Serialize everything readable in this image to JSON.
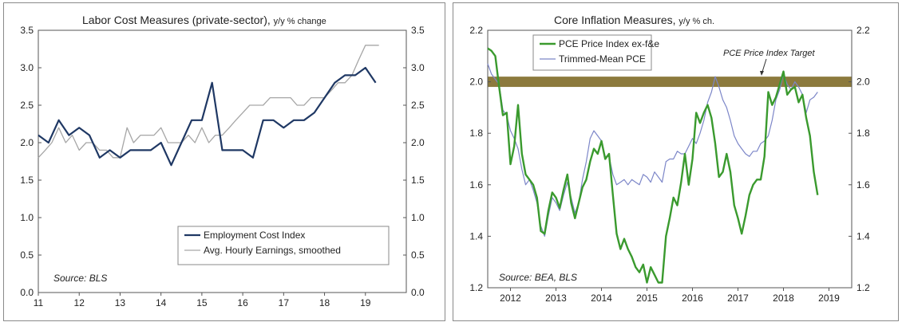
{
  "chart_data": [
    {
      "type": "line",
      "title": "Labor Cost Measures (private-sector),",
      "subtitle": "y/y % change",
      "xlabel": "",
      "ylabel": "",
      "x_ticks": [
        "11",
        "12",
        "13",
        "14",
        "15",
        "16",
        "17",
        "18",
        "19"
      ],
      "xlim": [
        2011.0,
        2020.0
      ],
      "ylim": [
        0.0,
        3.5
      ],
      "y_ticks": [
        "0.0",
        "0.5",
        "1.0",
        "1.5",
        "2.0",
        "2.5",
        "3.0",
        "3.5"
      ],
      "legend_position": "bottom-right",
      "source": "Source: BLS",
      "series": [
        {
          "name": "Employment Cost Index",
          "color": "#1f3864",
          "x": [
            2011.0,
            2011.25,
            2011.5,
            2011.75,
            2012.0,
            2012.25,
            2012.5,
            2012.75,
            2013.0,
            2013.25,
            2013.5,
            2013.75,
            2014.0,
            2014.25,
            2014.5,
            2014.75,
            2015.0,
            2015.25,
            2015.5,
            2015.75,
            2016.0,
            2016.25,
            2016.5,
            2016.75,
            2017.0,
            2017.25,
            2017.5,
            2017.75,
            2018.0,
            2018.25,
            2018.5,
            2018.75,
            2019.0,
            2019.25
          ],
          "values": [
            2.1,
            2.0,
            2.3,
            2.1,
            2.2,
            2.1,
            1.8,
            1.9,
            1.8,
            1.9,
            1.9,
            1.9,
            2.0,
            1.7,
            2.0,
            2.3,
            2.3,
            2.8,
            1.9,
            1.9,
            1.9,
            1.8,
            2.3,
            2.3,
            2.2,
            2.3,
            2.3,
            2.4,
            2.6,
            2.8,
            2.9,
            2.9,
            3.0,
            2.8
          ]
        },
        {
          "name": "Avg. Hourly Earnings, smoothed",
          "color": "#a6a6a6",
          "x": [
            2011.0,
            2011.17,
            2011.33,
            2011.5,
            2011.67,
            2011.83,
            2012.0,
            2012.17,
            2012.33,
            2012.5,
            2012.67,
            2012.83,
            2013.0,
            2013.17,
            2013.33,
            2013.5,
            2013.67,
            2013.83,
            2014.0,
            2014.17,
            2014.33,
            2014.5,
            2014.67,
            2014.83,
            2015.0,
            2015.17,
            2015.33,
            2015.5,
            2015.67,
            2015.83,
            2016.0,
            2016.17,
            2016.33,
            2016.5,
            2016.67,
            2016.83,
            2017.0,
            2017.17,
            2017.33,
            2017.5,
            2017.67,
            2017.83,
            2018.0,
            2018.17,
            2018.33,
            2018.5,
            2018.67,
            2018.83,
            2019.0,
            2019.17,
            2019.33
          ],
          "values": [
            1.8,
            1.9,
            2.0,
            2.2,
            2.0,
            2.1,
            1.9,
            2.0,
            2.0,
            1.9,
            1.9,
            1.8,
            1.8,
            2.2,
            2.0,
            2.1,
            2.1,
            2.1,
            2.2,
            2.0,
            2.0,
            2.0,
            2.1,
            2.0,
            2.2,
            2.0,
            2.1,
            2.1,
            2.2,
            2.3,
            2.4,
            2.5,
            2.5,
            2.5,
            2.6,
            2.6,
            2.6,
            2.6,
            2.5,
            2.5,
            2.6,
            2.6,
            2.6,
            2.7,
            2.8,
            2.8,
            2.9,
            3.1,
            3.3,
            3.3,
            3.3
          ]
        }
      ]
    },
    {
      "type": "line",
      "title": "Core Inflation Measures,",
      "subtitle": "y/y % ch.",
      "xlabel": "",
      "ylabel": "",
      "x_ticks": [
        "2012",
        "2013",
        "2014",
        "2015",
        "2016",
        "2017",
        "2018",
        "2019"
      ],
      "xlim": [
        2011.5,
        2019.5
      ],
      "ylim": [
        1.2,
        2.2
      ],
      "y_ticks": [
        "1.2",
        "1.4",
        "1.6",
        "1.8",
        "2.0",
        "2.2"
      ],
      "target_band": [
        1.98,
        2.02
      ],
      "band_color": "#8c7a3d",
      "annotation": "PCE Price Index Target",
      "legend_position": "top-left",
      "source": "Source: BEA, BLS",
      "series": [
        {
          "name": "PCE Price Index ex-f&e",
          "color": "#3a9a2e",
          "x": [
            2011.5,
            2011.583,
            2011.667,
            2011.75,
            2011.833,
            2011.917,
            2012.0,
            2012.083,
            2012.167,
            2012.25,
            2012.333,
            2012.417,
            2012.5,
            2012.583,
            2012.667,
            2012.75,
            2012.833,
            2012.917,
            2013.0,
            2013.083,
            2013.167,
            2013.25,
            2013.333,
            2013.417,
            2013.5,
            2013.583,
            2013.667,
            2013.75,
            2013.833,
            2013.917,
            2014.0,
            2014.083,
            2014.167,
            2014.25,
            2014.333,
            2014.417,
            2014.5,
            2014.583,
            2014.667,
            2014.75,
            2014.833,
            2014.917,
            2015.0,
            2015.083,
            2015.167,
            2015.25,
            2015.333,
            2015.417,
            2015.5,
            2015.583,
            2015.667,
            2015.75,
            2015.833,
            2015.917,
            2016.0,
            2016.083,
            2016.167,
            2016.25,
            2016.333,
            2016.417,
            2016.5,
            2016.583,
            2016.667,
            2016.75,
            2016.833,
            2016.917,
            2017.0,
            2017.083,
            2017.167,
            2017.25,
            2017.333,
            2017.417,
            2017.5,
            2017.583,
            2017.667,
            2017.75,
            2017.833,
            2017.917,
            2018.0,
            2018.083,
            2018.167,
            2018.25,
            2018.333,
            2018.417,
            2018.5,
            2018.583,
            2018.667,
            2018.75
          ],
          "values": [
            2.13,
            2.12,
            2.1,
            1.98,
            1.87,
            1.88,
            1.68,
            1.75,
            1.91,
            1.72,
            1.64,
            1.62,
            1.6,
            1.55,
            1.42,
            1.41,
            1.5,
            1.57,
            1.55,
            1.51,
            1.58,
            1.64,
            1.53,
            1.47,
            1.53,
            1.59,
            1.62,
            1.69,
            1.74,
            1.72,
            1.77,
            1.7,
            1.72,
            1.56,
            1.41,
            1.35,
            1.39,
            1.35,
            1.32,
            1.28,
            1.26,
            1.29,
            1.22,
            1.28,
            1.25,
            1.22,
            1.22,
            1.4,
            1.47,
            1.55,
            1.52,
            1.61,
            1.72,
            1.6,
            1.7,
            1.88,
            1.84,
            1.88,
            1.91,
            1.86,
            1.76,
            1.63,
            1.65,
            1.72,
            1.65,
            1.52,
            1.47,
            1.41,
            1.48,
            1.56,
            1.6,
            1.62,
            1.62,
            1.71,
            1.96,
            1.91,
            1.94,
            1.99,
            2.04,
            1.95,
            1.97,
            1.98,
            1.92,
            1.95,
            1.86,
            1.79,
            1.65,
            1.56
          ]
        },
        {
          "name": "Trimmed-Mean PCE",
          "color": "#7c86c8",
          "x": [
            2011.5,
            2011.583,
            2011.667,
            2011.75,
            2011.833,
            2011.917,
            2012.0,
            2012.083,
            2012.167,
            2012.25,
            2012.333,
            2012.417,
            2012.5,
            2012.583,
            2012.667,
            2012.75,
            2012.833,
            2012.917,
            2013.0,
            2013.083,
            2013.167,
            2013.25,
            2013.333,
            2013.417,
            2013.5,
            2013.583,
            2013.667,
            2013.75,
            2013.833,
            2013.917,
            2014.0,
            2014.083,
            2014.167,
            2014.25,
            2014.333,
            2014.417,
            2014.5,
            2014.583,
            2014.667,
            2014.75,
            2014.833,
            2014.917,
            2015.0,
            2015.083,
            2015.167,
            2015.25,
            2015.333,
            2015.417,
            2015.5,
            2015.583,
            2015.667,
            2015.75,
            2015.833,
            2015.917,
            2016.0,
            2016.083,
            2016.167,
            2016.25,
            2016.333,
            2016.417,
            2016.5,
            2016.583,
            2016.667,
            2016.75,
            2016.833,
            2016.917,
            2017.0,
            2017.083,
            2017.167,
            2017.25,
            2017.333,
            2017.417,
            2017.5,
            2017.583,
            2017.667,
            2017.75,
            2017.833,
            2017.917,
            2018.0,
            2018.083,
            2018.167,
            2018.25,
            2018.333,
            2018.417,
            2018.5,
            2018.583,
            2018.667,
            2018.75
          ],
          "values": [
            2.07,
            2.03,
            2.01,
            1.99,
            1.89,
            1.87,
            1.81,
            1.78,
            1.74,
            1.66,
            1.6,
            1.62,
            1.58,
            1.53,
            1.44,
            1.4,
            1.48,
            1.55,
            1.53,
            1.5,
            1.56,
            1.61,
            1.55,
            1.49,
            1.53,
            1.62,
            1.69,
            1.78,
            1.81,
            1.79,
            1.77,
            1.71,
            1.71,
            1.64,
            1.6,
            1.61,
            1.62,
            1.6,
            1.62,
            1.61,
            1.6,
            1.64,
            1.63,
            1.61,
            1.65,
            1.63,
            1.61,
            1.69,
            1.7,
            1.7,
            1.73,
            1.72,
            1.72,
            1.75,
            1.78,
            1.76,
            1.8,
            1.85,
            1.92,
            1.96,
            2.02,
            1.98,
            1.93,
            1.9,
            1.85,
            1.79,
            1.76,
            1.74,
            1.72,
            1.71,
            1.73,
            1.73,
            1.76,
            1.77,
            1.79,
            1.85,
            1.93,
            1.97,
            2.03,
            1.99,
            1.97,
            2.0,
            1.98,
            1.95,
            1.88,
            1.93,
            1.94,
            1.96
          ]
        }
      ]
    }
  ]
}
